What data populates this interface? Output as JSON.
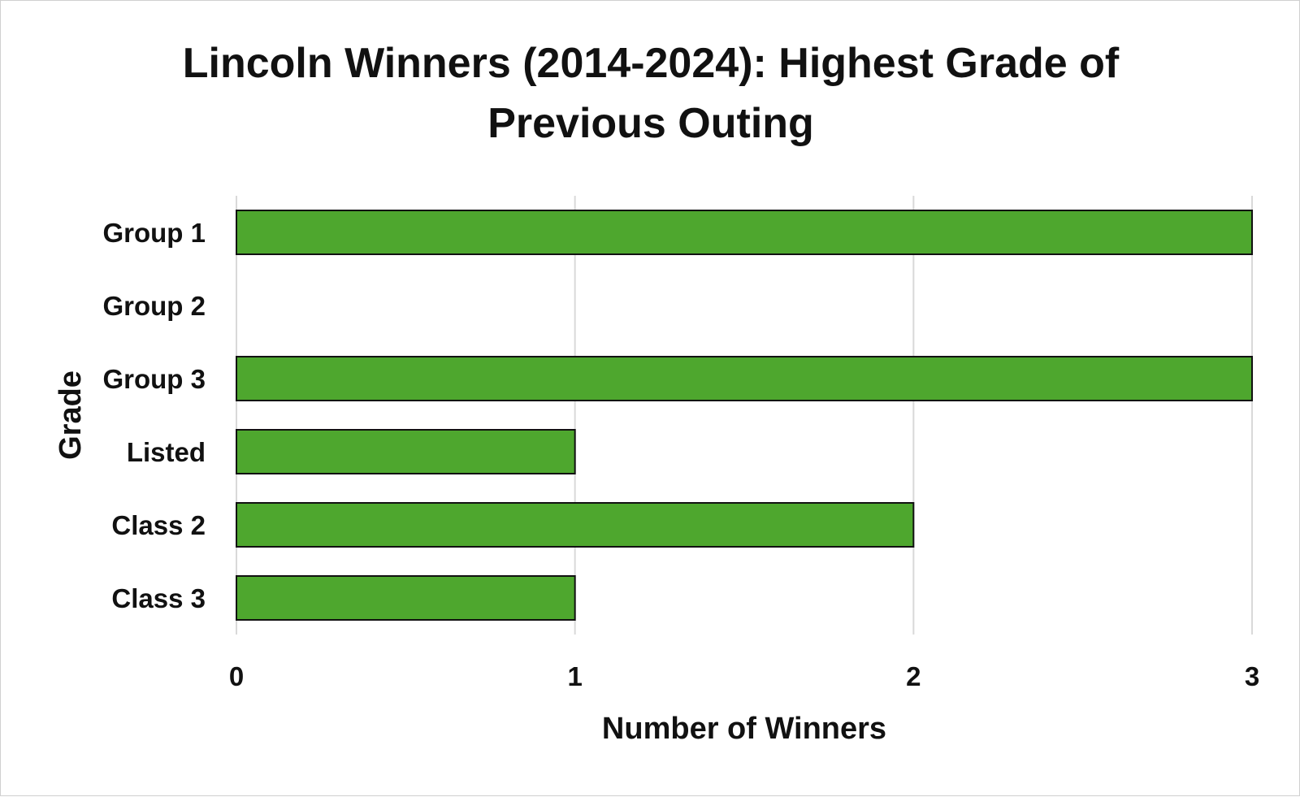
{
  "chart_data": {
    "type": "bar",
    "orientation": "horizontal",
    "title": "Lincoln Winners (2014-2024): Highest Grade of Previous Outing",
    "xlabel": "Number of Winners",
    "ylabel": "Grade",
    "categories": [
      "Group 1",
      "Group 2",
      "Group 3",
      "Listed",
      "Class 2",
      "Class 3"
    ],
    "values": [
      3,
      0,
      3,
      1,
      2,
      1
    ],
    "xlim": [
      0,
      3
    ],
    "xticks": [
      "0",
      "1",
      "2",
      "3"
    ],
    "grid": "vertical",
    "legend": "none",
    "bar_color": "#4ea72e",
    "bar_outline": "#111111"
  }
}
